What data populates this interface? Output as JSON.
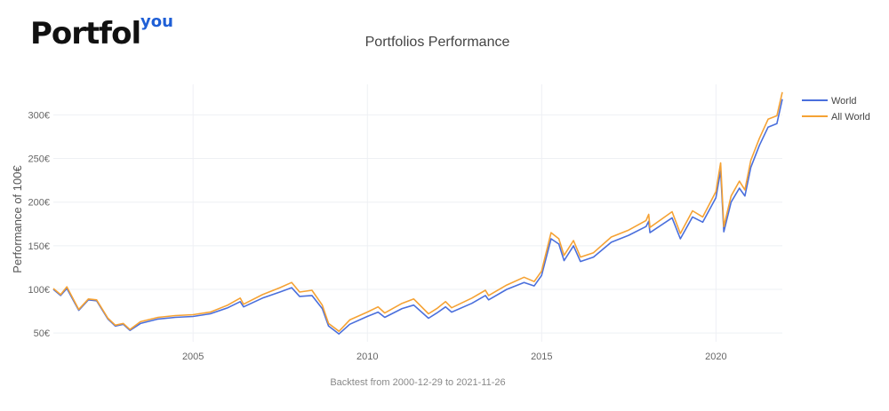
{
  "brand": {
    "name": "Portfol",
    "suffix": "you",
    "accent": "#1f5fd6"
  },
  "chart_data": {
    "type": "line",
    "title": "Portfolios Performance",
    "xlabel": "Backtest from 2000-12-29 to 2021-11-26",
    "ylabel": "Performance of 100€",
    "x_range": [
      "2000-12-29",
      "2021-11-26"
    ],
    "ylim": [
      40,
      335
    ],
    "y_ticks": [
      50,
      100,
      150,
      200,
      250,
      300
    ],
    "y_tick_labels": [
      "50€",
      "100€",
      "150€",
      "200€",
      "250€",
      "300€"
    ],
    "x_ticks": [
      "2005-01-01",
      "2010-01-01",
      "2015-01-01",
      "2020-01-01"
    ],
    "x_tick_labels": [
      "2005",
      "2010",
      "2015",
      "2020"
    ],
    "grid": true,
    "legend_position": "top-right",
    "series": [
      {
        "name": "World",
        "color": "#4a6fdc",
        "points": [
          [
            "2000-12-29",
            100
          ],
          [
            "2001-03-15",
            93
          ],
          [
            "2001-05-20",
            101
          ],
          [
            "2001-09-21",
            76
          ],
          [
            "2001-12-31",
            88
          ],
          [
            "2002-03-28",
            87
          ],
          [
            "2002-07-24",
            66
          ],
          [
            "2002-10-09",
            58
          ],
          [
            "2002-12-31",
            60
          ],
          [
            "2003-03-12",
            53
          ],
          [
            "2003-06-30",
            61
          ],
          [
            "2003-12-31",
            66
          ],
          [
            "2004-06-30",
            68
          ],
          [
            "2004-12-31",
            69
          ],
          [
            "2005-06-30",
            72
          ],
          [
            "2005-12-30",
            79
          ],
          [
            "2006-05-10",
            86
          ],
          [
            "2006-06-14",
            80
          ],
          [
            "2006-12-29",
            90
          ],
          [
            "2007-06-29",
            97
          ],
          [
            "2007-10-31",
            102
          ],
          [
            "2008-01-22",
            92
          ],
          [
            "2008-05-30",
            93
          ],
          [
            "2008-09-15",
            78
          ],
          [
            "2008-11-20",
            58
          ],
          [
            "2009-03-09",
            49
          ],
          [
            "2009-06-30",
            60
          ],
          [
            "2009-12-31",
            69
          ],
          [
            "2010-04-23",
            74
          ],
          [
            "2010-07-02",
            68
          ],
          [
            "2010-12-31",
            78
          ],
          [
            "2011-05-02",
            82
          ],
          [
            "2011-10-03",
            67
          ],
          [
            "2011-12-30",
            73
          ],
          [
            "2012-03-30",
            80
          ],
          [
            "2012-06-01",
            74
          ],
          [
            "2012-12-31",
            84
          ],
          [
            "2013-05-21",
            93
          ],
          [
            "2013-06-24",
            88
          ],
          [
            "2013-12-31",
            100
          ],
          [
            "2014-06-30",
            108
          ],
          [
            "2014-10-15",
            104
          ],
          [
            "2014-12-31",
            116
          ],
          [
            "2015-04-10",
            158
          ],
          [
            "2015-06-30",
            152
          ],
          [
            "2015-08-24",
            133
          ],
          [
            "2015-11-30",
            150
          ],
          [
            "2016-02-11",
            132
          ],
          [
            "2016-06-27",
            137
          ],
          [
            "2016-12-30",
            154
          ],
          [
            "2017-06-30",
            162
          ],
          [
            "2017-12-29",
            172
          ],
          [
            "2018-01-26",
            178
          ],
          [
            "2018-02-08",
            165
          ],
          [
            "2018-09-28",
            182
          ],
          [
            "2018-12-24",
            158
          ],
          [
            "2019-04-30",
            183
          ],
          [
            "2019-08-15",
            177
          ],
          [
            "2019-12-31",
            205
          ],
          [
            "2020-02-19",
            236
          ],
          [
            "2020-03-23",
            166
          ],
          [
            "2020-06-08",
            200
          ],
          [
            "2020-09-02",
            216
          ],
          [
            "2020-10-30",
            207
          ],
          [
            "2020-12-31",
            240
          ],
          [
            "2021-03-31",
            265
          ],
          [
            "2021-06-30",
            286
          ],
          [
            "2021-09-30",
            290
          ],
          [
            "2021-11-26",
            318
          ]
        ]
      },
      {
        "name": "All World",
        "color": "#f5a234",
        "points": [
          [
            "2000-12-29",
            101
          ],
          [
            "2001-03-15",
            94
          ],
          [
            "2001-05-20",
            103
          ],
          [
            "2001-09-21",
            77
          ],
          [
            "2001-12-31",
            89
          ],
          [
            "2002-03-28",
            88
          ],
          [
            "2002-07-24",
            67
          ],
          [
            "2002-10-09",
            59
          ],
          [
            "2002-12-31",
            61
          ],
          [
            "2003-03-12",
            54
          ],
          [
            "2003-06-30",
            63
          ],
          [
            "2003-12-31",
            68
          ],
          [
            "2004-06-30",
            70
          ],
          [
            "2004-12-31",
            71
          ],
          [
            "2005-06-30",
            74
          ],
          [
            "2005-12-30",
            82
          ],
          [
            "2006-05-10",
            90
          ],
          [
            "2006-06-14",
            83
          ],
          [
            "2006-12-29",
            94
          ],
          [
            "2007-06-29",
            102
          ],
          [
            "2007-10-31",
            108
          ],
          [
            "2008-01-22",
            97
          ],
          [
            "2008-05-30",
            99
          ],
          [
            "2008-09-15",
            82
          ],
          [
            "2008-11-20",
            61
          ],
          [
            "2009-03-09",
            52
          ],
          [
            "2009-06-30",
            65
          ],
          [
            "2009-12-31",
            74
          ],
          [
            "2010-04-23",
            80
          ],
          [
            "2010-07-02",
            73
          ],
          [
            "2010-12-31",
            84
          ],
          [
            "2011-05-02",
            89
          ],
          [
            "2011-10-03",
            72
          ],
          [
            "2011-12-30",
            78
          ],
          [
            "2012-03-30",
            86
          ],
          [
            "2012-06-01",
            79
          ],
          [
            "2012-12-31",
            90
          ],
          [
            "2013-05-21",
            99
          ],
          [
            "2013-06-24",
            93
          ],
          [
            "2013-12-31",
            105
          ],
          [
            "2014-06-30",
            114
          ],
          [
            "2014-10-15",
            109
          ],
          [
            "2014-12-31",
            121
          ],
          [
            "2015-04-10",
            165
          ],
          [
            "2015-06-30",
            158
          ],
          [
            "2015-08-24",
            139
          ],
          [
            "2015-11-30",
            156
          ],
          [
            "2016-02-11",
            137
          ],
          [
            "2016-06-27",
            142
          ],
          [
            "2016-12-30",
            160
          ],
          [
            "2017-06-30",
            168
          ],
          [
            "2017-12-29",
            179
          ],
          [
            "2018-01-26",
            186
          ],
          [
            "2018-02-08",
            171
          ],
          [
            "2018-09-28",
            189
          ],
          [
            "2018-12-24",
            164
          ],
          [
            "2019-04-30",
            190
          ],
          [
            "2019-08-15",
            183
          ],
          [
            "2019-12-31",
            212
          ],
          [
            "2020-02-19",
            245
          ],
          [
            "2020-03-23",
            172
          ],
          [
            "2020-06-08",
            207
          ],
          [
            "2020-09-02",
            224
          ],
          [
            "2020-10-30",
            214
          ],
          [
            "2020-12-31",
            248
          ],
          [
            "2021-03-31",
            273
          ],
          [
            "2021-06-30",
            295
          ],
          [
            "2021-09-30",
            299
          ],
          [
            "2021-11-26",
            326
          ]
        ]
      }
    ]
  }
}
